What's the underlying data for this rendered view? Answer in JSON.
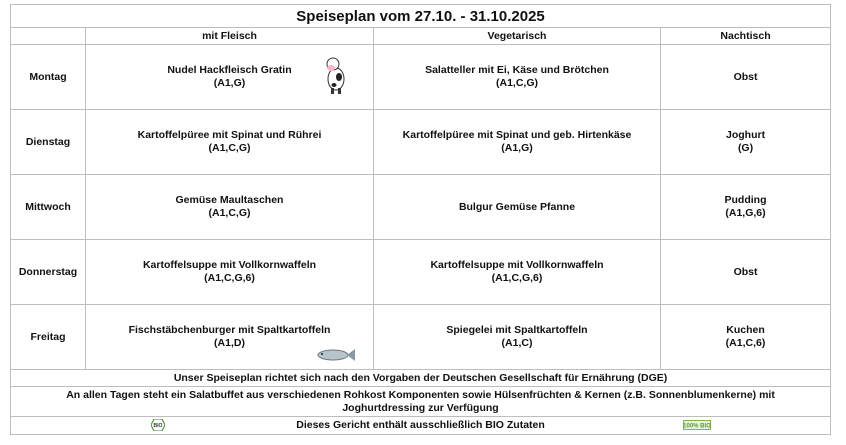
{
  "title": "Speiseplan vom 27.10. - 31.10.2025",
  "headers": [
    "",
    "mit Fleisch",
    "Vegetarisch",
    "Nachtisch"
  ],
  "days": [
    {
      "day": "Montag",
      "meat": "Nudel Hackfleisch Gratin",
      "meat_allergens": "(A1,G)",
      "meat_icon": "cow-icon",
      "veg": "Salatteller mit Ei, Käse und Brötchen",
      "veg_allergens": "(A1,C,G)",
      "dessert": "Obst",
      "dessert_allergens": ""
    },
    {
      "day": "Dienstag",
      "meat": "Kartoffelpüree mit Spinat und Rührei",
      "meat_allergens": "(A1,C,G)",
      "veg": "Kartoffelpüree mit Spinat und geb. Hirtenkäse",
      "veg_allergens": "(A1,G)",
      "dessert": "Joghurt",
      "dessert_allergens": "(G)"
    },
    {
      "day": "Mittwoch",
      "meat": "Gemüse Maultaschen",
      "meat_allergens": "(A1,C,G)",
      "veg": "Bulgur Gemüse Pfanne",
      "veg_allergens": "",
      "dessert": "Pudding",
      "dessert_allergens": "(A1,G,6)"
    },
    {
      "day": "Donnerstag",
      "meat": "Kartoffelsuppe mit Vollkornwaffeln",
      "meat_allergens": "(A1,C,G,6)",
      "veg": "Kartoffelsuppe mit Vollkornwaffeln",
      "veg_allergens": "(A1,C,G,6)",
      "dessert": "Obst",
      "dessert_allergens": ""
    },
    {
      "day": "Freitag",
      "meat": "Fischstäbchenburger mit Spaltkartoffeln",
      "meat_allergens": "(A1,D)",
      "meat_icon": "fish-icon",
      "veg": "Spiegelei mit Spaltkartoffeln",
      "veg_allergens": "(A1,C)",
      "dessert": "Kuchen",
      "dessert_allergens": "(A1,C,6)"
    }
  ],
  "footer": {
    "dge": "Unser Speiseplan richtet sich nach den Vorgaben der Deutschen Gesellschaft für Ernährung (DGE)",
    "salad_line1": "An allen Tagen steht ein Salatbuffet aus verschiedenen Rohkost Komponenten sowie Hülsenfrüchten & Kernen (z.B. Sonnenblumenkerne) mit",
    "salad_line2": "Joghurtdressing zur Verfügung",
    "bio": "Dieses Gericht enthält ausschließlich BIO Zutaten",
    "bio_logo": "Bio",
    "bio100_logo": "100% Bio"
  }
}
